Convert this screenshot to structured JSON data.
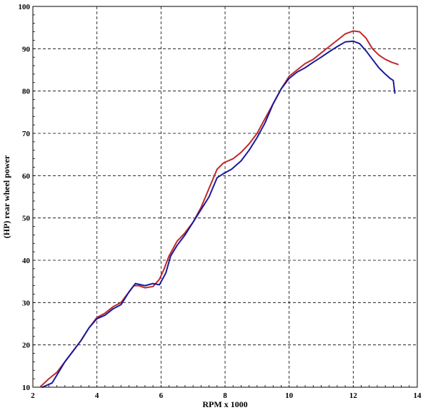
{
  "chart_data": {
    "type": "line",
    "xlabel": "RPM x 1000",
    "ylabel": "(HP) rear wheel power",
    "xlim": [
      2,
      14
    ],
    "ylim": [
      10,
      100
    ],
    "x_ticks": [
      2,
      4,
      6,
      8,
      10,
      12,
      14
    ],
    "y_ticks": [
      10,
      20,
      30,
      40,
      50,
      60,
      70,
      80,
      90,
      100
    ],
    "grid": true,
    "series": [
      {
        "color": "#c0282a",
        "points": [
          [
            2.25,
            10.2
          ],
          [
            2.5,
            12.0
          ],
          [
            2.75,
            13.5
          ],
          [
            3.0,
            16.0
          ],
          [
            3.25,
            18.5
          ],
          [
            3.5,
            21.0
          ],
          [
            3.75,
            24.0
          ],
          [
            4.0,
            26.5
          ],
          [
            4.25,
            27.5
          ],
          [
            4.5,
            29.0
          ],
          [
            4.75,
            30.0
          ],
          [
            5.0,
            32.5
          ],
          [
            5.15,
            34.0
          ],
          [
            5.3,
            34.0
          ],
          [
            5.5,
            33.5
          ],
          [
            5.75,
            33.8
          ],
          [
            5.95,
            35.5
          ],
          [
            6.1,
            38.0
          ],
          [
            6.25,
            41.0
          ],
          [
            6.5,
            44.5
          ],
          [
            6.75,
            46.5
          ],
          [
            7.0,
            49.0
          ],
          [
            7.25,
            52.5
          ],
          [
            7.5,
            57.0
          ],
          [
            7.75,
            61.5
          ],
          [
            7.95,
            63.0
          ],
          [
            8.25,
            64.0
          ],
          [
            8.5,
            65.5
          ],
          [
            8.75,
            67.5
          ],
          [
            9.0,
            70.0
          ],
          [
            9.25,
            73.5
          ],
          [
            9.5,
            77.0
          ],
          [
            9.75,
            80.5
          ],
          [
            10.0,
            83.5
          ],
          [
            10.25,
            85.0
          ],
          [
            10.5,
            86.5
          ],
          [
            10.75,
            87.5
          ],
          [
            11.0,
            89.0
          ],
          [
            11.25,
            90.5
          ],
          [
            11.5,
            92.0
          ],
          [
            11.75,
            93.5
          ],
          [
            12.0,
            94.2
          ],
          [
            12.2,
            94.0
          ],
          [
            12.4,
            92.5
          ],
          [
            12.6,
            90.0
          ],
          [
            12.8,
            88.5
          ],
          [
            13.0,
            87.5
          ],
          [
            13.2,
            86.8
          ],
          [
            13.4,
            86.3
          ]
        ]
      },
      {
        "color": "#1a1a9c",
        "points": [
          [
            2.3,
            10.0
          ],
          [
            2.6,
            11.0
          ],
          [
            2.8,
            13.5
          ],
          [
            3.0,
            16.0
          ],
          [
            3.25,
            18.5
          ],
          [
            3.5,
            21.0
          ],
          [
            3.75,
            24.0
          ],
          [
            4.0,
            26.2
          ],
          [
            4.25,
            27.0
          ],
          [
            4.5,
            28.5
          ],
          [
            4.75,
            29.5
          ],
          [
            5.0,
            32.5
          ],
          [
            5.2,
            34.5
          ],
          [
            5.5,
            34.0
          ],
          [
            5.75,
            34.5
          ],
          [
            5.95,
            34.2
          ],
          [
            6.15,
            37.0
          ],
          [
            6.3,
            41.0
          ],
          [
            6.5,
            43.5
          ],
          [
            6.75,
            46.0
          ],
          [
            7.0,
            49.0
          ],
          [
            7.25,
            52.0
          ],
          [
            7.5,
            55.0
          ],
          [
            7.75,
            59.5
          ],
          [
            7.95,
            60.5
          ],
          [
            8.2,
            61.5
          ],
          [
            8.5,
            63.5
          ],
          [
            8.75,
            66.0
          ],
          [
            9.0,
            69.0
          ],
          [
            9.25,
            72.5
          ],
          [
            9.5,
            77.0
          ],
          [
            9.75,
            80.5
          ],
          [
            10.0,
            83.0
          ],
          [
            10.25,
            84.5
          ],
          [
            10.5,
            85.5
          ],
          [
            10.75,
            86.8
          ],
          [
            11.0,
            88.0
          ],
          [
            11.25,
            89.3
          ],
          [
            11.5,
            90.5
          ],
          [
            11.75,
            91.6
          ],
          [
            12.0,
            91.8
          ],
          [
            12.2,
            91.2
          ],
          [
            12.4,
            89.5
          ],
          [
            12.6,
            87.5
          ],
          [
            12.8,
            85.5
          ],
          [
            13.0,
            84.0
          ],
          [
            13.15,
            83.0
          ],
          [
            13.25,
            82.5
          ],
          [
            13.3,
            79.5
          ]
        ]
      }
    ]
  }
}
